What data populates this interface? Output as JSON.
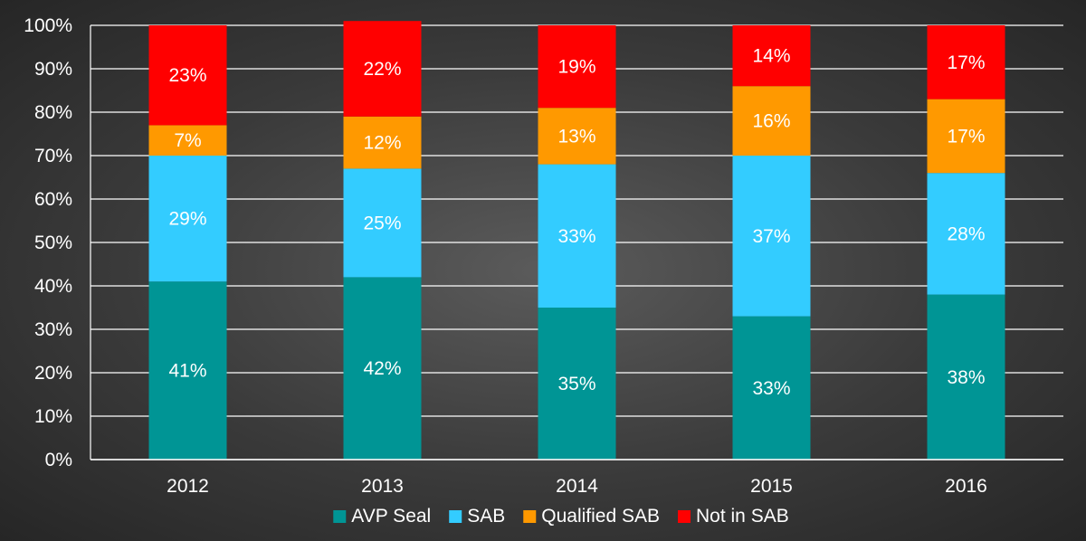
{
  "chart_data": {
    "type": "bar",
    "stacked": true,
    "categories": [
      "2012",
      "2013",
      "2014",
      "2015",
      "2016"
    ],
    "series": [
      {
        "name": "AVP Seal",
        "color": "#009595",
        "values": [
          41,
          42,
          35,
          33,
          38
        ],
        "labels": [
          "41%",
          "42%",
          "35%",
          "33%",
          "38%"
        ]
      },
      {
        "name": "SAB",
        "color": "#33ccff",
        "values": [
          29,
          25,
          33,
          37,
          28
        ],
        "labels": [
          "29%",
          "25%",
          "33%",
          "37%",
          "28%"
        ]
      },
      {
        "name": "Qualified SAB",
        "color": "#ff9900",
        "values": [
          7,
          12,
          13,
          16,
          17
        ],
        "labels": [
          "7%",
          "12%",
          "13%",
          "16%",
          "17%"
        ]
      },
      {
        "name": "Not in SAB",
        "color": "#ff0000",
        "values": [
          23,
          22,
          19,
          14,
          17
        ],
        "labels": [
          "23%",
          "22%",
          "19%",
          "14%",
          "17%"
        ]
      }
    ],
    "ylim": [
      0,
      100
    ],
    "yticks": [
      "0%",
      "10%",
      "20%",
      "30%",
      "40%",
      "50%",
      "60%",
      "70%",
      "80%",
      "90%",
      "100%"
    ],
    "grid": true,
    "legend": "bottom",
    "title": "",
    "xlabel": "",
    "ylabel": ""
  }
}
